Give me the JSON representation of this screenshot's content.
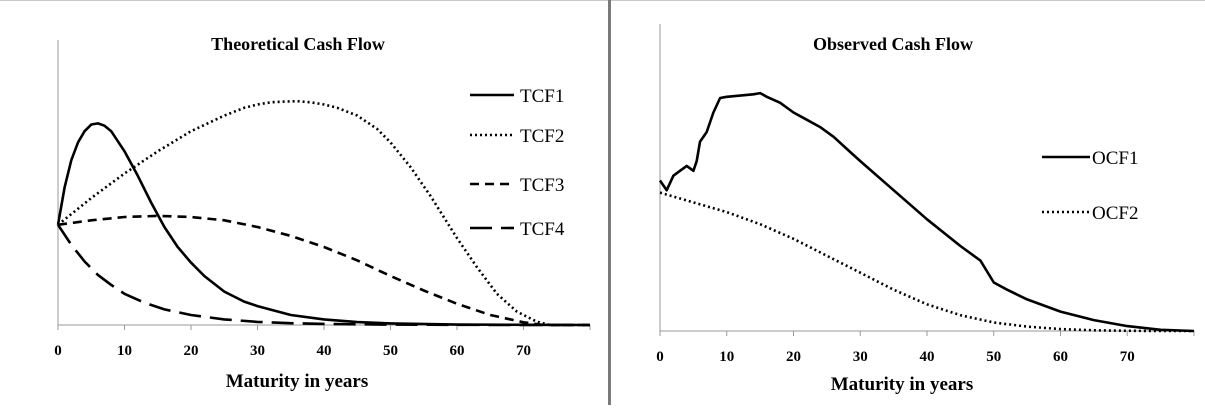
{
  "chart_data": [
    {
      "type": "line",
      "title": "Theoretical Cash Flow",
      "xlabel": "Maturity in years",
      "ylabel": "",
      "xlim": [
        0,
        80
      ],
      "ylim": [
        0,
        1.1
      ],
      "xticks": [
        "0",
        "10",
        "20",
        "30",
        "40",
        "50",
        "60",
        "70"
      ],
      "grid": false,
      "legend_position": "right",
      "series": [
        {
          "name": "TCF1",
          "style": "solid",
          "x": [
            0,
            1,
            2,
            3,
            4,
            5,
            6,
            7,
            8,
            10,
            12,
            14,
            16,
            18,
            20,
            22,
            25,
            28,
            30,
            35,
            40,
            45,
            50,
            60,
            70,
            80
          ],
          "y": [
            0.45,
            0.62,
            0.74,
            0.82,
            0.87,
            0.9,
            0.905,
            0.895,
            0.87,
            0.78,
            0.67,
            0.55,
            0.44,
            0.35,
            0.28,
            0.22,
            0.15,
            0.105,
            0.085,
            0.045,
            0.025,
            0.013,
            0.007,
            0.002,
            0.001,
            0.0
          ]
        },
        {
          "name": "TCF2",
          "style": "dotted",
          "x": [
            0,
            5,
            10,
            15,
            20,
            25,
            28,
            30,
            32,
            34,
            36,
            38,
            40,
            42,
            45,
            48,
            50,
            53,
            56,
            60,
            63,
            66,
            69,
            72,
            74,
            80
          ],
          "y": [
            0.45,
            0.57,
            0.68,
            0.78,
            0.87,
            0.94,
            0.975,
            0.99,
            1.0,
            1.003,
            1.005,
            1.0,
            0.99,
            0.975,
            0.94,
            0.88,
            0.82,
            0.71,
            0.58,
            0.39,
            0.26,
            0.14,
            0.06,
            0.015,
            0.0,
            0.0
          ]
        },
        {
          "name": "TCF3",
          "style": "dashed",
          "x": [
            0,
            5,
            10,
            15,
            20,
            25,
            30,
            35,
            40,
            45,
            50,
            55,
            60,
            65,
            70,
            73,
            80
          ],
          "y": [
            0.45,
            0.47,
            0.485,
            0.49,
            0.485,
            0.47,
            0.44,
            0.4,
            0.35,
            0.29,
            0.22,
            0.155,
            0.095,
            0.045,
            0.012,
            0.0,
            0.0
          ]
        },
        {
          "name": "TCF4",
          "style": "long-dash",
          "x": [
            0,
            2,
            4,
            6,
            8,
            10,
            13,
            16,
            20,
            25,
            30,
            35,
            40,
            45,
            50,
            60,
            70,
            80
          ],
          "y": [
            0.45,
            0.36,
            0.285,
            0.225,
            0.18,
            0.14,
            0.1,
            0.07,
            0.045,
            0.025,
            0.014,
            0.008,
            0.005,
            0.003,
            0.002,
            0.001,
            0.0,
            0.0
          ]
        }
      ]
    },
    {
      "type": "line",
      "title": "Observed Cash Flow",
      "xlabel": "Maturity in years",
      "ylabel": "",
      "xlim": [
        0,
        80
      ],
      "ylim": [
        0,
        1.1
      ],
      "xticks": [
        "0",
        "10",
        "20",
        "30",
        "40",
        "50",
        "60",
        "70"
      ],
      "grid": false,
      "legend_position": "right",
      "series": [
        {
          "name": "OCF1",
          "style": "solid",
          "x": [
            0,
            1,
            2,
            3,
            4,
            5,
            5.5,
            6,
            7,
            8,
            9,
            10,
            12,
            14,
            15,
            16,
            18,
            20,
            22,
            24,
            26,
            28,
            30,
            35,
            40,
            45,
            48,
            50,
            52,
            55,
            60,
            65,
            70,
            75,
            80
          ],
          "y": [
            0.62,
            0.58,
            0.64,
            0.66,
            0.68,
            0.66,
            0.7,
            0.78,
            0.82,
            0.9,
            0.96,
            0.965,
            0.97,
            0.975,
            0.98,
            0.965,
            0.94,
            0.9,
            0.87,
            0.84,
            0.8,
            0.75,
            0.7,
            0.58,
            0.46,
            0.35,
            0.29,
            0.2,
            0.17,
            0.13,
            0.08,
            0.045,
            0.02,
            0.005,
            0.0
          ]
        },
        {
          "name": "OCF2",
          "style": "dotted",
          "x": [
            0,
            5,
            10,
            15,
            20,
            25,
            30,
            35,
            40,
            45,
            50,
            55,
            60,
            65,
            70,
            75,
            80
          ],
          "y": [
            0.57,
            0.53,
            0.49,
            0.44,
            0.38,
            0.31,
            0.24,
            0.17,
            0.11,
            0.065,
            0.035,
            0.018,
            0.008,
            0.003,
            0.001,
            0.0,
            0.0
          ]
        }
      ]
    }
  ]
}
